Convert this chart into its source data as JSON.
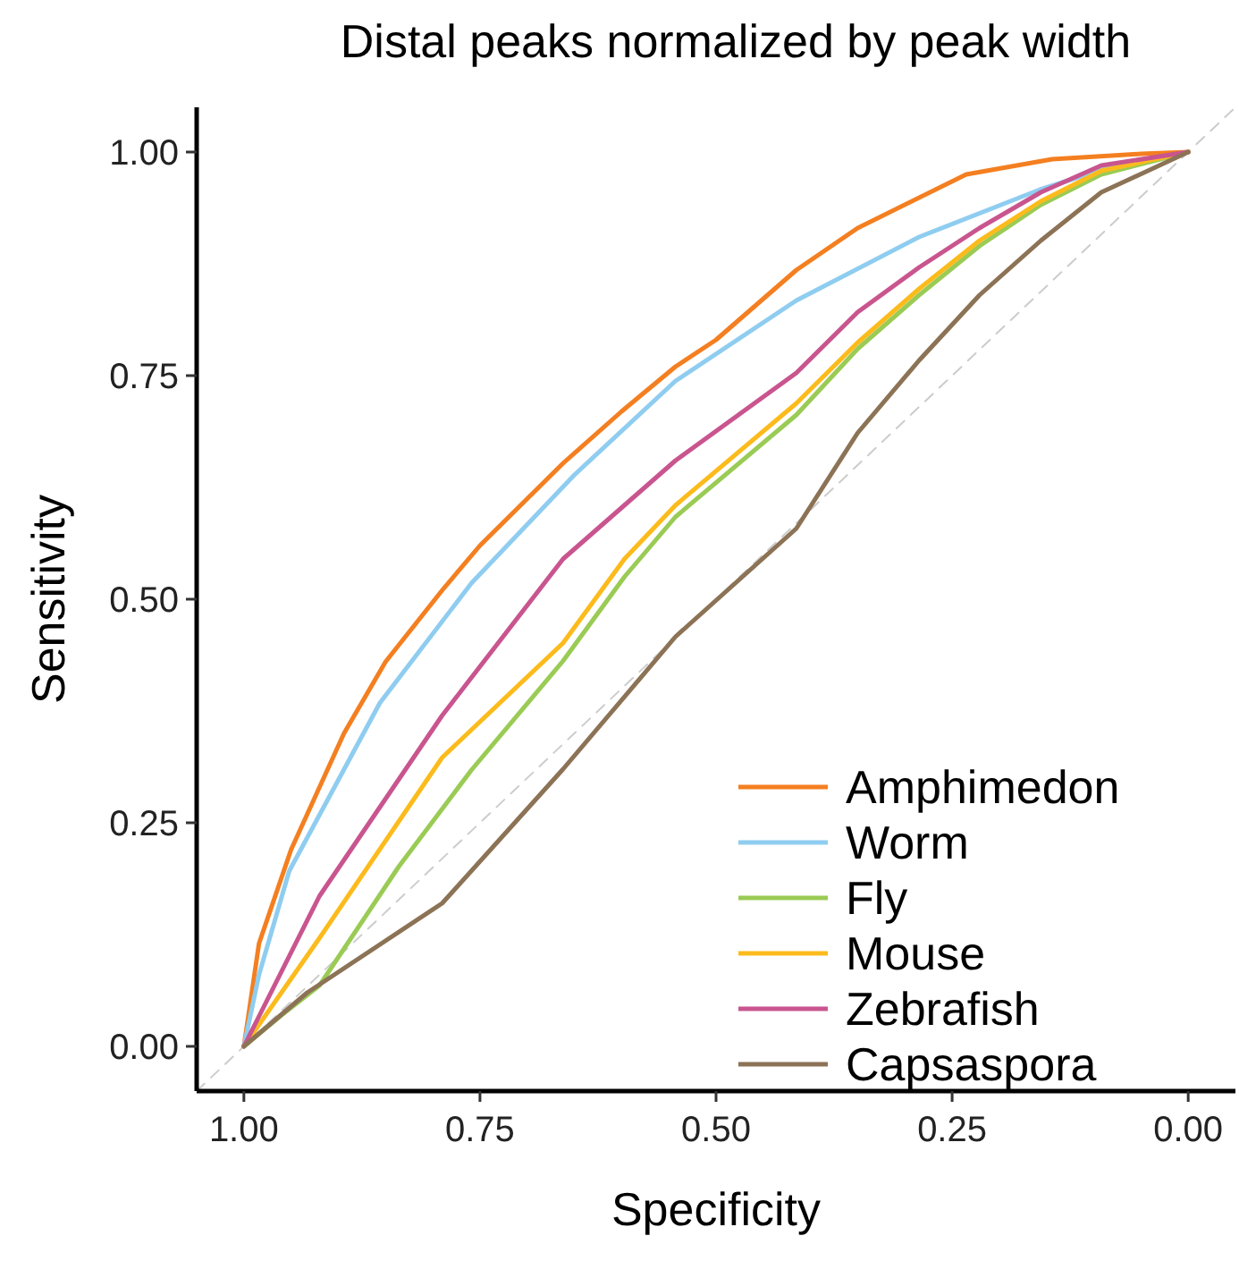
{
  "chart_data": {
    "type": "line",
    "title": "Distal peaks normalized by peak width",
    "xlabel": "Specificity",
    "ylabel": "Sensitivity",
    "xlim": [
      1.05,
      -0.05
    ],
    "ylim": [
      -0.05,
      1.05
    ],
    "xticks": [
      {
        "value": 1,
        "label": "1.00"
      },
      {
        "value": 0.75,
        "label": "0.75"
      },
      {
        "value": 0.5,
        "label": "0.50"
      },
      {
        "value": 0.25,
        "label": "0.25"
      },
      {
        "value": 0,
        "label": "0.00"
      }
    ],
    "yticks": [
      {
        "value": 0,
        "label": "0.00"
      },
      {
        "value": 0.25,
        "label": "0.25"
      },
      {
        "value": 0.5,
        "label": "0.50"
      },
      {
        "value": 0.75,
        "label": "0.75"
      },
      {
        "value": 1,
        "label": "1.00"
      }
    ],
    "grid": false,
    "legend": "bottom right",
    "series": [
      {
        "color": "#cccccc",
        "line_style": "dashed",
        "x": [
          1.05,
          -0.05
        ],
        "values": [
          -0.05,
          1.05
        ]
      },
      {
        "name": "Amphimedon",
        "color": "#f47f20",
        "x": [
          1,
          0.984,
          0.95,
          0.894,
          0.85,
          0.79,
          0.75,
          0.662,
          0.6,
          0.543,
          0.5,
          0.415,
          0.35,
          0.235,
          0.144,
          0.05,
          0
        ],
        "values": [
          0,
          0.115,
          0.22,
          0.35,
          0.43,
          0.51,
          0.56,
          0.652,
          0.71,
          0.76,
          0.79,
          0.868,
          0.915,
          0.975,
          0.992,
          0.998,
          1
        ]
      },
      {
        "name": "Worm",
        "color": "#8fcdf0",
        "x": [
          1,
          0.984,
          0.952,
          0.856,
          0.759,
          0.65,
          0.543,
          0.415,
          0.285,
          0.157,
          0.092,
          0
        ],
        "values": [
          0,
          0.08,
          0.196,
          0.384,
          0.518,
          0.639,
          0.744,
          0.834,
          0.905,
          0.958,
          0.98,
          1
        ]
      },
      {
        "name": "Fly",
        "color": "#9acb55",
        "x": [
          1,
          0.96,
          0.92,
          0.836,
          0.759,
          0.662,
          0.597,
          0.543,
          0.415,
          0.35,
          0.285,
          0.221,
          0.156,
          0.092,
          0
        ],
        "values": [
          0,
          0.035,
          0.068,
          0.201,
          0.309,
          0.431,
          0.525,
          0.592,
          0.706,
          0.78,
          0.84,
          0.895,
          0.941,
          0.975,
          1
        ]
      },
      {
        "name": "Mouse",
        "color": "#fcbb1c",
        "x": [
          1,
          0.92,
          0.79,
          0.662,
          0.597,
          0.543,
          0.415,
          0.35,
          0.285,
          0.221,
          0.156,
          0.092,
          0
        ],
        "values": [
          0,
          0.121,
          0.323,
          0.451,
          0.545,
          0.605,
          0.719,
          0.787,
          0.847,
          0.901,
          0.945,
          0.979,
          1
        ]
      },
      {
        "name": "Zebrafish",
        "color": "#c9558f",
        "x": [
          1,
          0.92,
          0.79,
          0.662,
          0.543,
          0.415,
          0.35,
          0.285,
          0.221,
          0.156,
          0.092,
          0
        ],
        "values": [
          0,
          0.168,
          0.37,
          0.545,
          0.655,
          0.753,
          0.821,
          0.871,
          0.915,
          0.955,
          0.985,
          1
        ]
      },
      {
        "name": "Capsaspora",
        "color": "#8c7356",
        "x": [
          1,
          0.933,
          0.79,
          0.662,
          0.543,
          0.415,
          0.35,
          0.285,
          0.221,
          0.156,
          0.092,
          0
        ],
        "values": [
          0,
          0.06,
          0.16,
          0.31,
          0.458,
          0.579,
          0.686,
          0.767,
          0.84,
          0.901,
          0.955,
          1
        ]
      }
    ]
  }
}
